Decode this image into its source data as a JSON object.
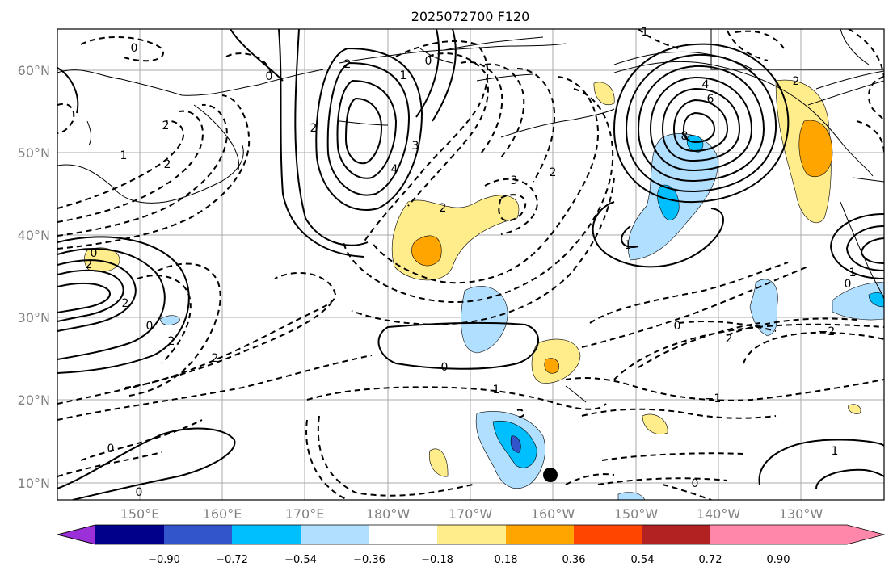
{
  "title": "2025072700 F120",
  "lat_labels": [
    "60°N",
    "50°N",
    "40°N",
    "30°N",
    "20°N",
    "10°N"
  ],
  "lon_labels": [
    "150°E",
    "160°E",
    "170°E",
    "180°W",
    "170°W",
    "160°W",
    "150°W",
    "140°W",
    "130°W"
  ],
  "colorbar": {
    "tick_labels": [
      "−0.90",
      "−0.72",
      "−0.54",
      "−0.36",
      "−0.18",
      "0.18",
      "0.36",
      "0.54",
      "0.72",
      "0.90"
    ],
    "colors": [
      "#9b30d8",
      "#00008b",
      "#3355cc",
      "#00bfff",
      "#b0dfff",
      "#ffffff",
      "#ffec8b",
      "#ffa500",
      "#ff4500",
      "#b22222",
      "#ff88aa"
    ]
  },
  "contour_labels": [
    "0",
    "0",
    "0",
    "0",
    "0",
    "0",
    "0",
    "0",
    "0",
    "0",
    "0",
    "1",
    "1",
    "1",
    "1",
    "1",
    "1",
    "1",
    "2",
    "2",
    "2",
    "2",
    "2",
    "2",
    "2",
    "2",
    "2",
    "2",
    "2",
    "2",
    "3",
    "3",
    "4",
    "4",
    "6",
    "8",
    "−1",
    "−2"
  ],
  "marker": "station-dot"
}
